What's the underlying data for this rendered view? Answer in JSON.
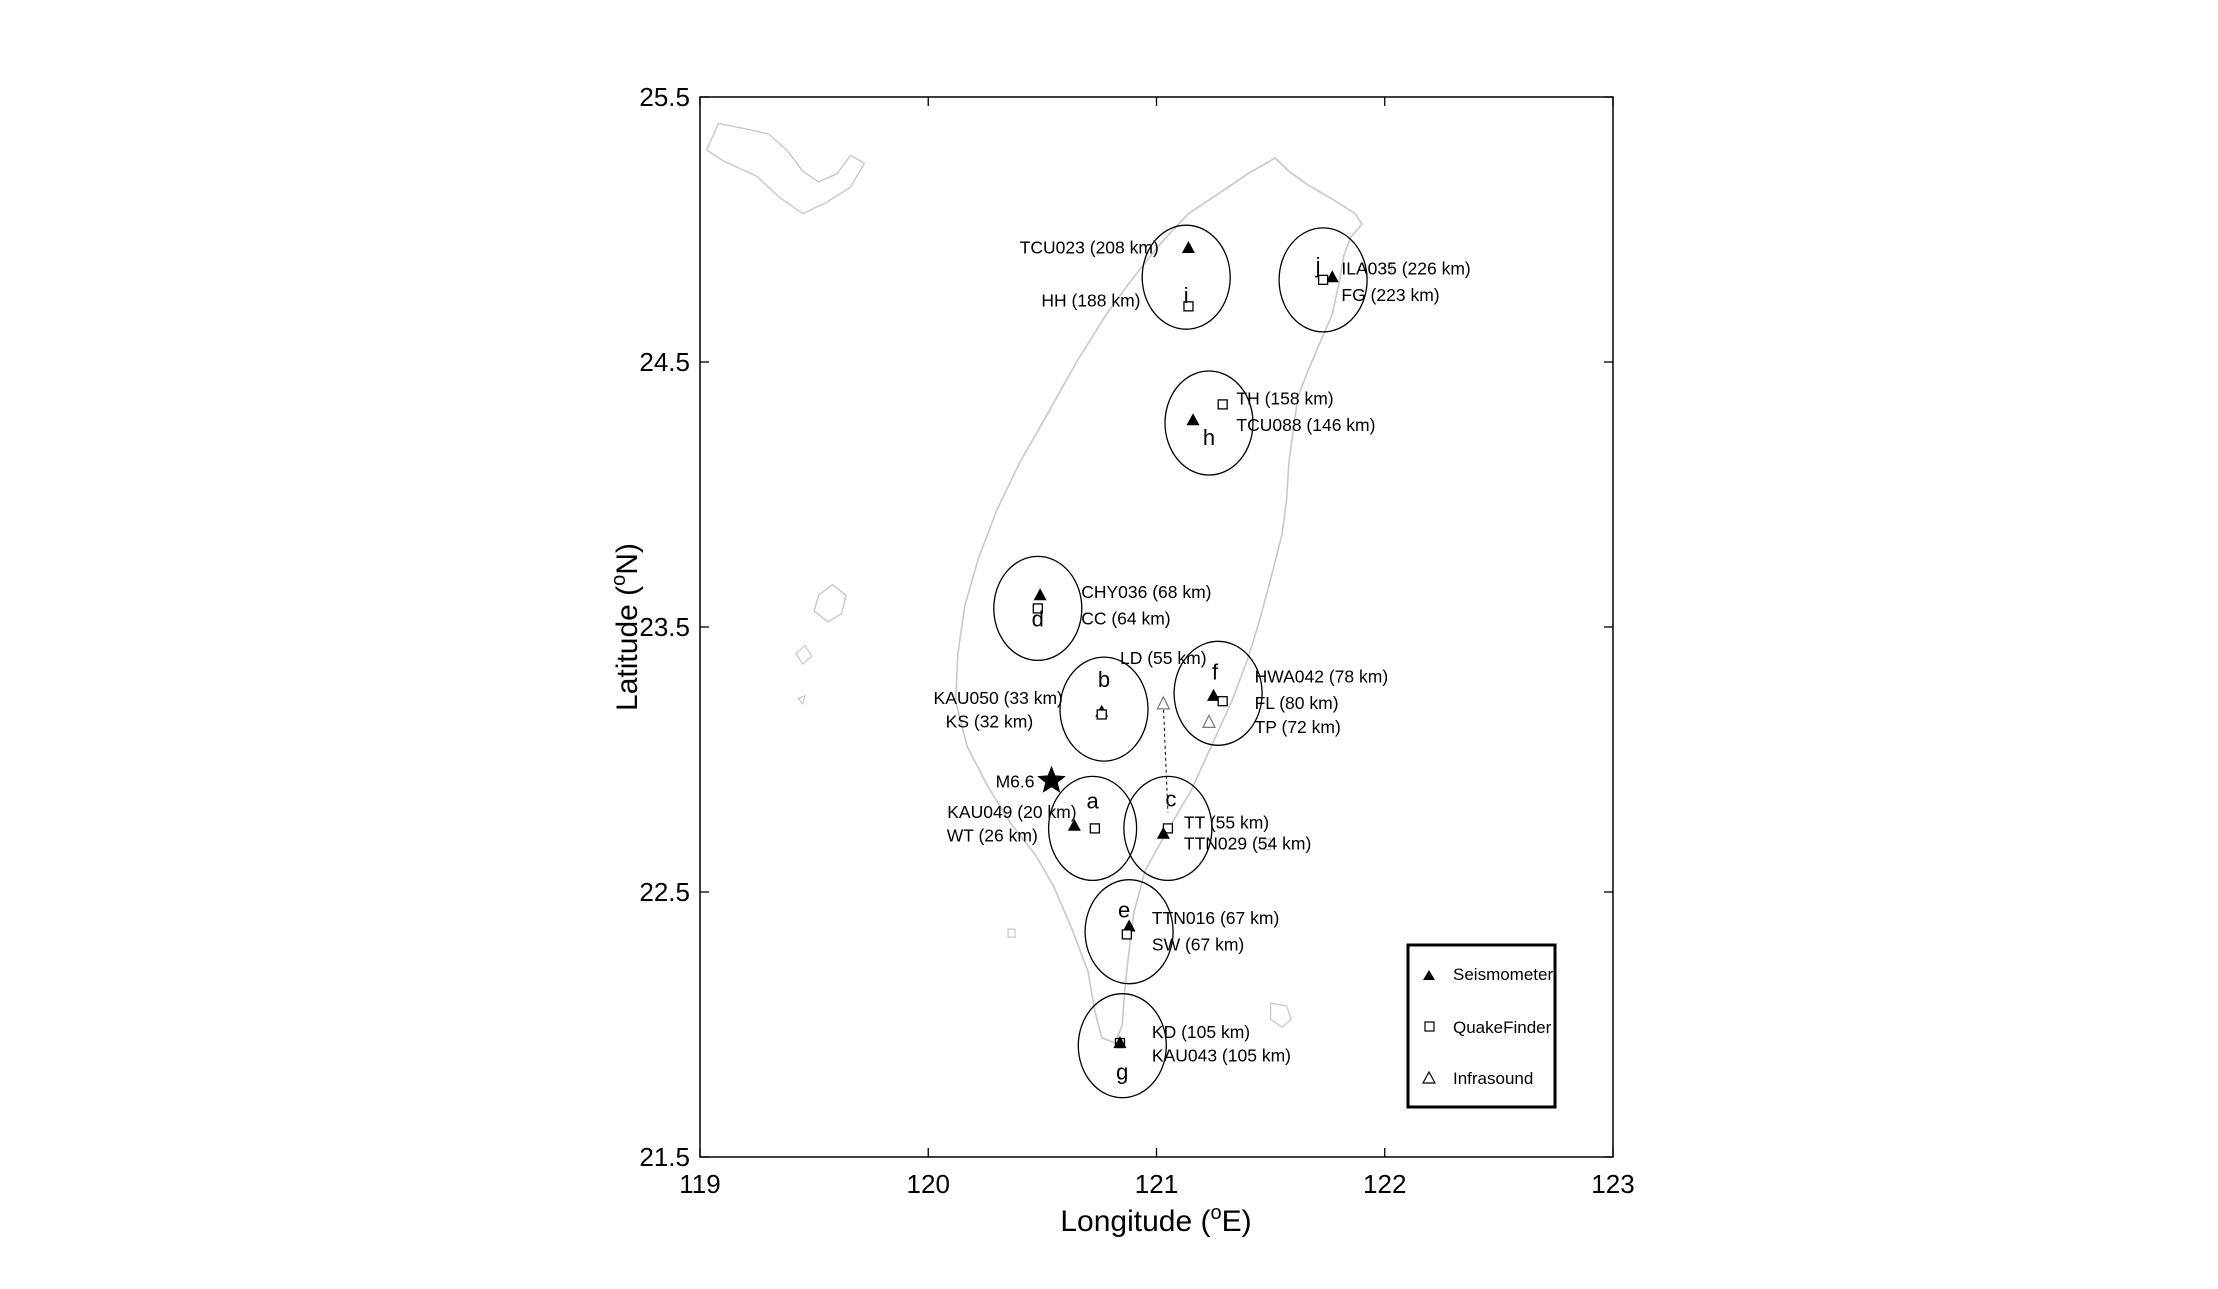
{
  "chart_data": {
    "type": "map",
    "xlabel": "Longitude (oE)",
    "xlabel_parts": {
      "base": "Longitude (",
      "sup": "o",
      "rest": "E)"
    },
    "ylabel": "Latitude (oN)",
    "ylabel_parts": {
      "base": "Latitude (",
      "sup": "o",
      "rest": "N)"
    },
    "xlim": [
      119,
      123
    ],
    "ylim": [
      21.5,
      25.5
    ],
    "xticks": [
      119,
      120,
      121,
      122,
      123
    ],
    "yticks": [
      21.5,
      22.5,
      23.5,
      24.5,
      25.5
    ],
    "xtick_labels": [
      "119",
      "120",
      "121",
      "122",
      "123"
    ],
    "ytick_labels": [
      "21.5",
      "22.5",
      "23.5",
      "24.5",
      "25.5"
    ],
    "epicenter": {
      "label": "M6.6",
      "lon": 120.54,
      "lat": 22.92
    },
    "groups": [
      {
        "letter": "a",
        "lon": 120.72,
        "lat": 22.74
      },
      {
        "letter": "b",
        "lon": 120.77,
        "lat": 23.19
      },
      {
        "letter": "c",
        "lon": 121.05,
        "lat": 22.74
      },
      {
        "letter": "d",
        "lon": 120.48,
        "lat": 23.57
      },
      {
        "letter": "e",
        "lon": 120.88,
        "lat": 22.35
      },
      {
        "letter": "f",
        "lon": 121.27,
        "lat": 23.25
      },
      {
        "letter": "g",
        "lon": 120.85,
        "lat": 21.92
      },
      {
        "letter": "h",
        "lon": 121.23,
        "lat": 24.27
      },
      {
        "letter": "i",
        "lon": 121.13,
        "lat": 24.82
      },
      {
        "letter": "j",
        "lon": 121.73,
        "lat": 24.81
      }
    ],
    "stations": [
      {
        "name": "KAU049",
        "dist": "20 km",
        "type": "Seismometer",
        "lon": 120.64,
        "lat": 22.75
      },
      {
        "name": "WT",
        "dist": "26 km",
        "type": "QuakeFinder",
        "lon": 120.73,
        "lat": 22.74
      },
      {
        "name": "KAU050",
        "dist": "33 km",
        "type": "Seismometer",
        "lon": 120.76,
        "lat": 23.18
      },
      {
        "name": "KS",
        "dist": "32 km",
        "type": "QuakeFinder",
        "lon": 120.76,
        "lat": 23.17
      },
      {
        "name": "TT",
        "dist": "55 km",
        "type": "QuakeFinder",
        "lon": 121.05,
        "lat": 22.74
      },
      {
        "name": "TTN029",
        "dist": "54 km",
        "type": "Seismometer",
        "lon": 121.03,
        "lat": 22.72
      },
      {
        "name": "LD",
        "dist": "55 km",
        "type": "Infrasound",
        "lon": 121.03,
        "lat": 23.21
      },
      {
        "name": "CHY036",
        "dist": "68 km",
        "type": "Seismometer",
        "lon": 120.49,
        "lat": 23.62
      },
      {
        "name": "CC",
        "dist": "64 km",
        "type": "QuakeFinder",
        "lon": 120.48,
        "lat": 23.57
      },
      {
        "name": "TTN016",
        "dist": "67 km",
        "type": "Seismometer",
        "lon": 120.88,
        "lat": 22.37
      },
      {
        "name": "SW",
        "dist": "67 km",
        "type": "QuakeFinder",
        "lon": 120.87,
        "lat": 22.34
      },
      {
        "name": "HWA042",
        "dist": "78 km",
        "type": "Seismometer",
        "lon": 121.25,
        "lat": 23.24
      },
      {
        "name": "FL",
        "dist": "80 km",
        "type": "QuakeFinder",
        "lon": 121.29,
        "lat": 23.22
      },
      {
        "name": "TP",
        "dist": "72 km",
        "type": "Infrasound",
        "lon": 121.23,
        "lat": 23.14
      },
      {
        "name": "KD",
        "dist": "105 km",
        "type": "QuakeFinder",
        "lon": 120.84,
        "lat": 21.93
      },
      {
        "name": "KAU043",
        "dist": "105 km",
        "type": "Seismometer",
        "lon": 120.84,
        "lat": 21.93
      },
      {
        "name": "TH",
        "dist": "158 km",
        "type": "QuakeFinder",
        "lon": 121.29,
        "lat": 24.34
      },
      {
        "name": "TCU088",
        "dist": "146 km",
        "type": "Seismometer",
        "lon": 121.16,
        "lat": 24.28
      },
      {
        "name": "TCU023",
        "dist": "208 km",
        "type": "Seismometer",
        "lon": 121.14,
        "lat": 24.93
      },
      {
        "name": "HH",
        "dist": "188 km",
        "type": "QuakeFinder",
        "lon": 121.14,
        "lat": 24.71
      },
      {
        "name": "ILA035",
        "dist": "226 km",
        "type": "Seismometer",
        "lon": 121.77,
        "lat": 24.82
      },
      {
        "name": "FG",
        "dist": "223 km",
        "type": "QuakeFinder",
        "lon": 121.73,
        "lat": 24.81
      }
    ],
    "labels": [
      {
        "text": "KAU049 (20 km)",
        "lon": 120.65,
        "lat": 22.78,
        "anchor": "end"
      },
      {
        "text": "WT (26 km)",
        "lon": 120.48,
        "lat": 22.69,
        "anchor": "end"
      },
      {
        "text": "KAU050 (33 km)",
        "lon": 120.59,
        "lat": 23.21,
        "anchor": "end"
      },
      {
        "text": "KS (32 km)",
        "lon": 120.46,
        "lat": 23.12,
        "anchor": "end"
      },
      {
        "text": "TT (55 km)",
        "lon": 121.12,
        "lat": 22.74,
        "anchor": "start"
      },
      {
        "text": "TTN029 (54 km)",
        "lon": 121.12,
        "lat": 22.66,
        "anchor": "start"
      },
      {
        "text": "LD (55 km)",
        "lon": 120.84,
        "lat": 23.36,
        "anchor": "start"
      },
      {
        "text": "CHY036 (68 km)",
        "lon": 120.67,
        "lat": 23.61,
        "anchor": "start"
      },
      {
        "text": "CC (64 km)",
        "lon": 120.67,
        "lat": 23.51,
        "anchor": "start"
      },
      {
        "text": "TTN016 (67 km)",
        "lon": 120.98,
        "lat": 22.38,
        "anchor": "start"
      },
      {
        "text": "SW (67 km)",
        "lon": 120.98,
        "lat": 22.28,
        "anchor": "start"
      },
      {
        "text": "HWA042 (78 km)",
        "lon": 121.43,
        "lat": 23.29,
        "anchor": "start"
      },
      {
        "text": "FL (80 km)",
        "lon": 121.43,
        "lat": 23.19,
        "anchor": "start"
      },
      {
        "text": "TP (72 km)",
        "lon": 121.43,
        "lat": 23.1,
        "anchor": "start"
      },
      {
        "text": "KD (105 km)",
        "lon": 120.98,
        "lat": 21.95,
        "anchor": "start"
      },
      {
        "text": "KAU043 (105 km)",
        "lon": 120.98,
        "lat": 21.86,
        "anchor": "start"
      },
      {
        "text": "TH (158 km)",
        "lon": 121.35,
        "lat": 24.34,
        "anchor": "start"
      },
      {
        "text": "TCU088 (146 km)",
        "lon": 121.35,
        "lat": 24.24,
        "anchor": "start"
      },
      {
        "text": "TCU023 (208 km)",
        "lon": 121.01,
        "lat": 24.91,
        "anchor": "end"
      },
      {
        "text": "HH (188 km)",
        "lon": 120.93,
        "lat": 24.71,
        "anchor": "end"
      },
      {
        "text": "ILA035 (226 km)",
        "lon": 121.81,
        "lat": 24.83,
        "anchor": "start"
      },
      {
        "text": "FG (223 km)",
        "lon": 121.81,
        "lat": 24.73,
        "anchor": "start"
      }
    ],
    "dashed_link": {
      "from": [
        121.03,
        23.21
      ],
      "to": [
        121.05,
        22.8
      ]
    },
    "legend": {
      "placement": "bottom-right",
      "items": [
        {
          "symbol": "Seismometer",
          "label": "Seismometer"
        },
        {
          "symbol": "QuakeFinder",
          "label": "QuakeFinder"
        },
        {
          "symbol": "Infrasound",
          "label": "Infrasound"
        }
      ]
    },
    "coastline_color": "#c8c8c8"
  }
}
